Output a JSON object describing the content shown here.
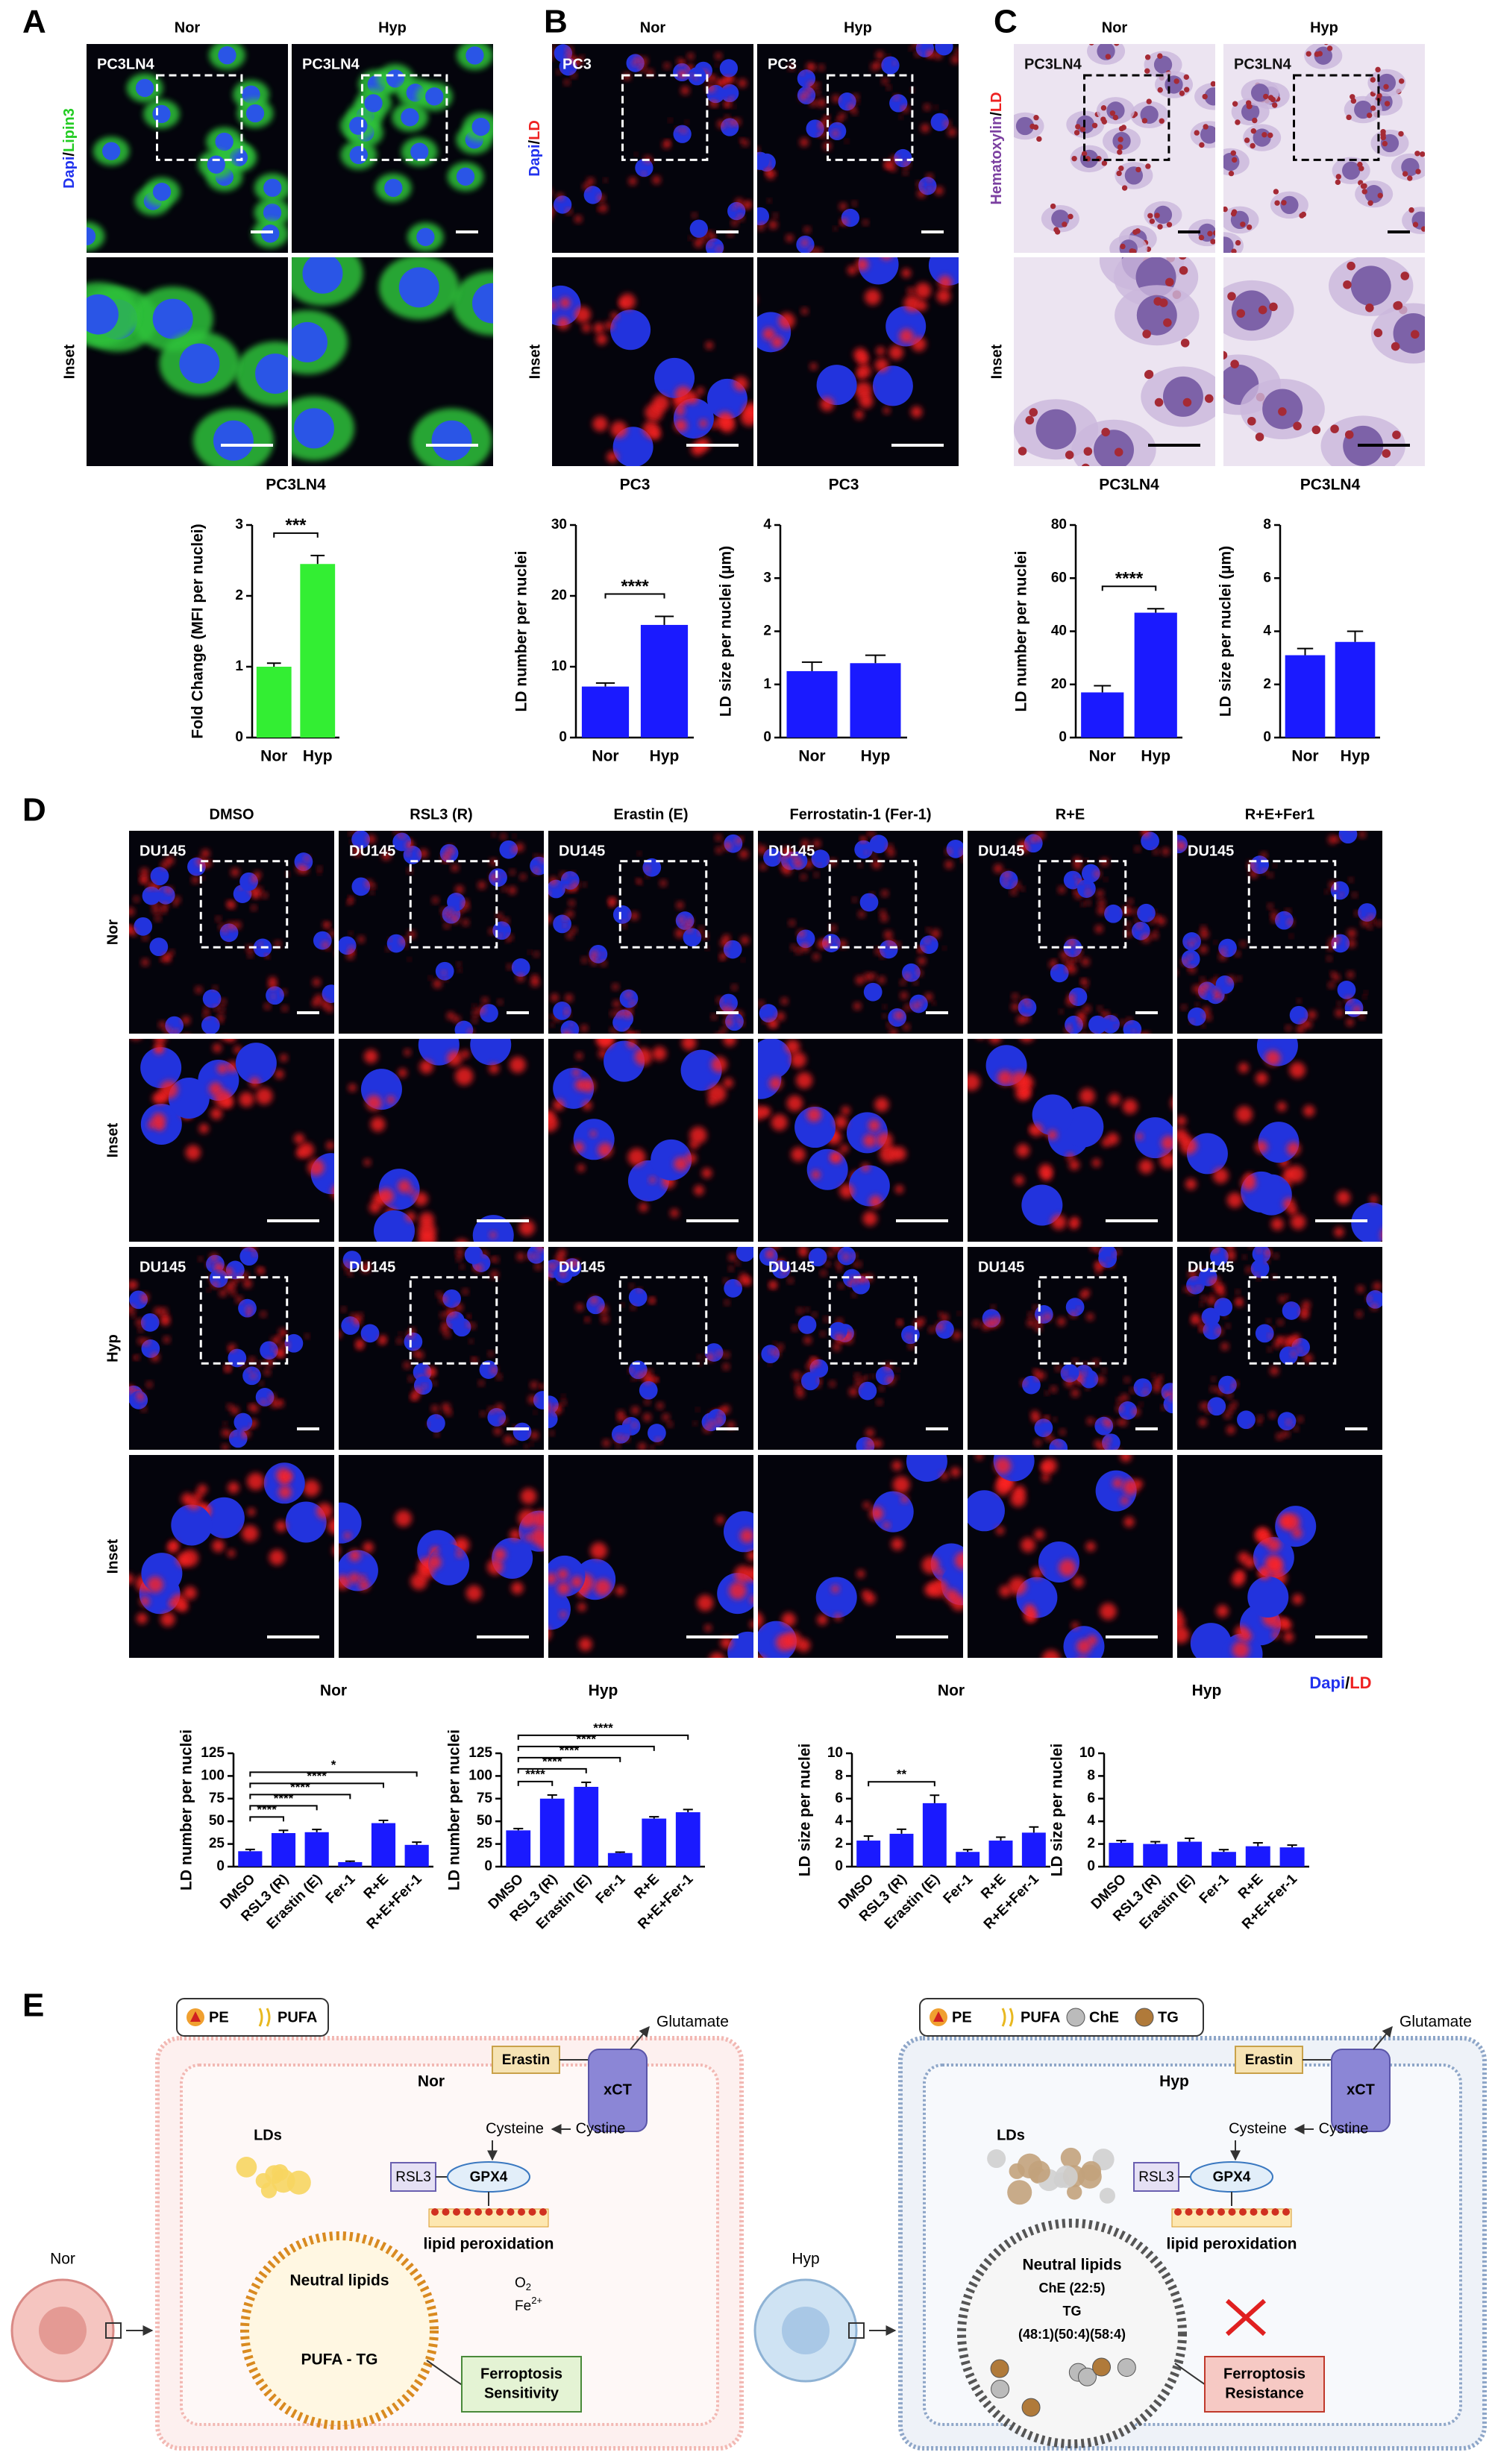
{
  "panel_labels": [
    "A",
    "B",
    "C",
    "D",
    "E"
  ],
  "panel_a": {
    "column_headers": [
      "Nor",
      "Hyp"
    ],
    "image_labels": [
      "PC3LN4",
      "PC3LN4"
    ],
    "stain": [
      "Dapi",
      "/",
      "Lipin3"
    ],
    "stain_colors": [
      "#2233ee",
      "#000000",
      "#22cc22"
    ],
    "row_label": "Inset"
  },
  "panel_b": {
    "column_headers": [
      "Nor",
      "Hyp"
    ],
    "image_labels": [
      "PC3",
      "PC3"
    ],
    "stain": [
      "Dapi",
      "/",
      "LD"
    ],
    "stain_colors": [
      "#2233ee",
      "#000000",
      "#ee2222"
    ],
    "row_label": "Inset"
  },
  "panel_c": {
    "column_headers": [
      "Nor",
      "Hyp"
    ],
    "image_labels": [
      "PC3LN4",
      "PC3LN4"
    ],
    "stain": [
      "Hematoxylin",
      "/",
      "LD"
    ],
    "stain_colors": [
      "#7b3fa0",
      "#000000",
      "#ee2222"
    ],
    "row_label": "Inset"
  },
  "panel_d": {
    "column_headers": [
      "DMSO",
      "RSL3 (R)",
      "Erastin (E)",
      "Ferrostatin-1 (Fer-1)",
      "R+E",
      "R+E+Fer1"
    ],
    "row_labels": [
      "Nor",
      "Inset",
      "Hyp",
      "Inset"
    ],
    "image_labels": [
      "DU145",
      "DU145",
      "DU145",
      "DU145",
      "DU145",
      "DU145",
      "DU145",
      "DU145",
      "DU145",
      "DU145",
      "DU145",
      "DU145"
    ],
    "stain": [
      "Dapi",
      "/",
      "LD"
    ],
    "stain_colors": [
      "#2233ee",
      "#000000",
      "#ee2222"
    ]
  },
  "chart_data": [
    {
      "type": "bar",
      "title": "PC3LN4",
      "y_label": "Fold Change (MFI per nuclei)",
      "categories": [
        "Nor",
        "Hyp"
      ],
      "values": [
        1.0,
        2.45
      ],
      "errors": [
        0.05,
        0.12
      ],
      "color": "#33ee33",
      "ylim": [
        0,
        3
      ],
      "yticks": [
        0,
        1,
        2,
        3
      ],
      "significance": [
        {
          "from": "Nor",
          "to": "Hyp",
          "label": "***"
        }
      ]
    },
    {
      "type": "bar",
      "title": "PC3",
      "y_label": "LD number per nuclei",
      "categories": [
        "Nor",
        "Hyp"
      ],
      "values": [
        7.2,
        15.9
      ],
      "errors": [
        0.5,
        1.2
      ],
      "color": "#1a1aff",
      "ylim": [
        0,
        30
      ],
      "yticks": [
        0,
        10,
        20,
        30
      ],
      "significance": [
        {
          "from": "Nor",
          "to": "Hyp",
          "label": "****"
        }
      ]
    },
    {
      "type": "bar",
      "title": "PC3",
      "y_label": "LD size per nuclei (µm)",
      "categories": [
        "Nor",
        "Hyp"
      ],
      "values": [
        1.25,
        1.4
      ],
      "errors": [
        0.17,
        0.15
      ],
      "color": "#1a1aff",
      "ylim": [
        0,
        4
      ],
      "yticks": [
        0,
        1,
        2,
        3,
        4
      ],
      "significance": []
    },
    {
      "type": "bar",
      "title": "PC3LN4",
      "y_label": "LD number per nuclei",
      "categories": [
        "Nor",
        "Hyp"
      ],
      "values": [
        17,
        47
      ],
      "errors": [
        2.5,
        1.5
      ],
      "color": "#1a1aff",
      "ylim": [
        0,
        80
      ],
      "yticks": [
        0,
        20,
        40,
        60,
        80
      ],
      "significance": [
        {
          "from": "Nor",
          "to": "Hyp",
          "label": "****"
        }
      ]
    },
    {
      "type": "bar",
      "title": "PC3LN4",
      "y_label": "LD size per nuclei (µm)",
      "categories": [
        "Nor",
        "Hyp"
      ],
      "values": [
        3.1,
        3.6
      ],
      "errors": [
        0.25,
        0.4
      ],
      "color": "#1a1aff",
      "ylim": [
        0,
        8
      ],
      "yticks": [
        0,
        2,
        4,
        6,
        8
      ],
      "significance": []
    },
    {
      "type": "bar",
      "title": "Nor",
      "y_label": "LD number per nuclei",
      "categories": [
        "DMSO",
        "RSL3 (R)",
        "Erastin (E)",
        "Fer-1",
        "R+E",
        "R+E+Fer-1"
      ],
      "values": [
        17,
        37,
        38,
        5,
        48,
        24
      ],
      "errors": [
        2,
        3,
        3,
        1,
        3,
        3
      ],
      "color": "#1a1aff",
      "ylim": [
        0,
        125
      ],
      "yticks": [
        0,
        25,
        50,
        75,
        100,
        125
      ],
      "significance": [
        {
          "from": "DMSO",
          "to": "RSL3 (R)",
          "label": "****"
        },
        {
          "from": "DMSO",
          "to": "Erastin (E)",
          "label": "****"
        },
        {
          "from": "DMSO",
          "to": "Fer-1",
          "label": "****"
        },
        {
          "from": "DMSO",
          "to": "R+E",
          "label": "****"
        },
        {
          "from": "DMSO",
          "to": "R+E+Fer-1",
          "label": "*"
        }
      ]
    },
    {
      "type": "bar",
      "title": "Hyp",
      "y_label": "LD number per nuclei",
      "categories": [
        "DMSO",
        "RSL3 (R)",
        "Erastin (E)",
        "Fer-1",
        "R+E",
        "R+E+Fer-1"
      ],
      "values": [
        40,
        75,
        88,
        15,
        53,
        60
      ],
      "errors": [
        2,
        4,
        5,
        1,
        2,
        3
      ],
      "color": "#1a1aff",
      "ylim": [
        0,
        125
      ],
      "yticks": [
        0,
        25,
        50,
        75,
        100,
        125
      ],
      "significance": [
        {
          "from": "DMSO",
          "to": "RSL3 (R)",
          "label": "****"
        },
        {
          "from": "DMSO",
          "to": "Erastin (E)",
          "label": "****"
        },
        {
          "from": "DMSO",
          "to": "Fer-1",
          "label": "****"
        },
        {
          "from": "DMSO",
          "to": "R+E",
          "label": "****"
        },
        {
          "from": "DMSO",
          "to": "R+E+Fer-1",
          "label": "****"
        }
      ]
    },
    {
      "type": "bar",
      "title": "Nor",
      "y_label": "LD size per nuclei",
      "categories": [
        "DMSO",
        "RSL3 (R)",
        "Erastin (E)",
        "Fer-1",
        "R+E",
        "R+E+Fer-1"
      ],
      "values": [
        2.3,
        2.9,
        5.6,
        1.3,
        2.3,
        3.0
      ],
      "errors": [
        0.4,
        0.4,
        0.7,
        0.2,
        0.3,
        0.5
      ],
      "color": "#1a1aff",
      "ylim": [
        0,
        10
      ],
      "yticks": [
        0,
        2,
        4,
        6,
        8,
        10
      ],
      "significance": [
        {
          "from": "DMSO",
          "to": "Erastin (E)",
          "label": "**"
        }
      ]
    },
    {
      "type": "bar",
      "title": "Hyp",
      "y_label": "LD size per nuclei",
      "categories": [
        "DMSO",
        "RSL3 (R)",
        "Erastin (E)",
        "Fer-1",
        "R+E",
        "R+E+Fer-1"
      ],
      "values": [
        2.1,
        2.0,
        2.2,
        1.3,
        1.8,
        1.7
      ],
      "errors": [
        0.2,
        0.2,
        0.3,
        0.2,
        0.3,
        0.2
      ],
      "color": "#1a1aff",
      "ylim": [
        0,
        10
      ],
      "yticks": [
        0,
        2,
        4,
        6,
        8,
        10
      ],
      "significance": []
    }
  ],
  "panel_e": {
    "left": {
      "legend": [
        "PE",
        "PUFA"
      ],
      "inhibitor": "Erastin",
      "glutamate": "Glutamate",
      "transporter": "xCT",
      "condition": "Nor",
      "droplets": "LDs",
      "cysteine": "Cysteine",
      "cystine": "Cystine",
      "gpx4_inhibitor": "RSL3",
      "enzyme": "GPX4",
      "peroxidation": "lipid peroxidation",
      "core": "Neutral lipids",
      "species": [
        "PUFA - TG"
      ],
      "oxygen": [
        "O",
        "2"
      ],
      "iron": [
        "Fe",
        "2+"
      ],
      "outcome": [
        "Ferroptosis",
        "Sensitivity"
      ],
      "cell": "Nor"
    },
    "right": {
      "legend": [
        "PE",
        "PUFA",
        "ChE",
        "TG"
      ],
      "inhibitor": "Erastin",
      "glutamate": "Glutamate",
      "transporter": "xCT",
      "condition": "Hyp",
      "droplets": "LDs",
      "cysteine": "Cysteine",
      "cystine": "Cystine",
      "gpx4_inhibitor": "RSL3",
      "enzyme": "GPX4",
      "peroxidation": "lipid peroxidation",
      "core": "Neutral lipids",
      "species": [
        "ChE (22:5)",
        "TG",
        "(48:1)(50:4)(58:4)"
      ],
      "outcome": [
        "Ferroptosis",
        "Resistance"
      ],
      "cell": "Hyp"
    }
  }
}
